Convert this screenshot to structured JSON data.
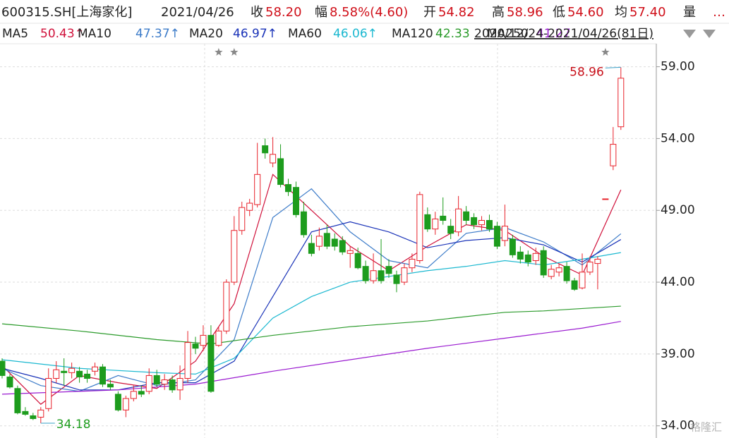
{
  "header": {
    "code": "600315.SH[上海家化]",
    "date": "2021/04/26",
    "fields": [
      {
        "label": "收",
        "value": "58.20"
      },
      {
        "label": "幅",
        "value": "8.58%(4.60)"
      },
      {
        "label": "开",
        "value": "54.82"
      },
      {
        "label": "高",
        "value": "58.96"
      },
      {
        "label": "低",
        "value": "54.60"
      },
      {
        "label": "均",
        "value": "57.40"
      }
    ],
    "volume_label": "量",
    "more": "…",
    "range": "2020/12/24-2021/04/26(81日)"
  },
  "watermark": "格隆汇",
  "chart_data": {
    "type": "candlestick",
    "up_color": "#e8222b",
    "down_color": "#1d9c1d",
    "open": [
      38.5,
      37.4,
      36.6,
      35.0,
      34.7,
      34.6,
      35.2,
      37.3,
      37.8,
      37.7,
      37.8,
      37.6,
      37.8,
      38.1,
      36.9,
      36.2,
      35.1,
      35.9,
      36.4,
      36.4,
      37.5,
      36.9,
      37.2,
      36.5,
      37.3,
      39.7,
      39.6,
      40.3,
      39.6,
      40.6,
      44.0,
      47.6,
      49.0,
      49.4,
      53.5,
      52.3,
      52.6,
      50.8,
      50.6,
      48.9,
      46.7,
      46.5,
      47.4,
      47.0,
      46.9,
      46.0,
      46.0,
      45.1,
      44.1,
      44.8,
      45.1,
      44.5,
      44.0,
      45.0,
      45.5,
      48.7,
      47.7,
      48.6,
      47.9,
      47.5,
      48.9,
      48.5,
      48.0,
      48.3,
      47.9,
      46.9,
      47.0,
      46.1,
      45.9,
      45.5,
      46.2,
      44.4,
      44.7,
      45.1,
      44.1,
      43.6,
      44.7,
      45.3,
      49.8,
      52.1,
      54.82
    ],
    "high": [
      38.7,
      37.6,
      36.8,
      35.3,
      34.9,
      35.3,
      38.0,
      38.5,
      38.7,
      38.4,
      38.1,
      37.9,
      38.4,
      38.3,
      37.2,
      36.4,
      36.1,
      36.8,
      36.8,
      38.0,
      37.9,
      37.6,
      37.5,
      38.2,
      40.6,
      40.2,
      41.0,
      41.0,
      40.9,
      44.2,
      48.6,
      49.6,
      49.8,
      53.7,
      54.0,
      54.1,
      53.6,
      51.2,
      51.0,
      49.6,
      47.3,
      47.8,
      48.0,
      47.4,
      47.2,
      46.5,
      46.4,
      45.5,
      46.0,
      47.0,
      45.6,
      44.8,
      45.3,
      46.0,
      50.3,
      49.2,
      48.9,
      49.9,
      48.4,
      50.0,
      49.3,
      48.8,
      48.6,
      48.7,
      48.2,
      49.4,
      47.3,
      46.5,
      46.2,
      46.4,
      46.5,
      45.2,
      45.3,
      45.4,
      44.3,
      46.0,
      45.8,
      45.8,
      49.8,
      54.8,
      58.96
    ],
    "low": [
      37.3,
      36.6,
      34.8,
      34.7,
      34.4,
      34.18,
      35.0,
      37.0,
      36.8,
      37.3,
      37.0,
      37.0,
      37.5,
      36.7,
      36.5,
      35.0,
      34.6,
      35.7,
      36.0,
      36.2,
      36.7,
      36.5,
      36.3,
      35.8,
      37.0,
      39.0,
      39.2,
      36.3,
      39.5,
      40.4,
      43.8,
      47.3,
      48.6,
      49.2,
      52.6,
      52.0,
      50.6,
      50.0,
      48.5,
      47.1,
      45.8,
      46.2,
      46.3,
      46.2,
      45.9,
      45.0,
      44.9,
      43.9,
      43.9,
      43.9,
      44.3,
      43.3,
      43.8,
      44.7,
      45.3,
      47.5,
      47.3,
      48.0,
      47.0,
      47.2,
      48.0,
      47.7,
      47.6,
      47.5,
      46.3,
      46.5,
      45.7,
      45.3,
      45.1,
      45.2,
      44.3,
      44.2,
      44.4,
      43.9,
      43.4,
      43.5,
      44.5,
      43.5,
      49.8,
      51.8,
      54.6
    ],
    "close": [
      37.5,
      36.7,
      34.9,
      34.8,
      34.5,
      35.1,
      37.3,
      37.9,
      37.7,
      38.0,
      37.4,
      37.3,
      38.1,
      36.9,
      36.7,
      35.1,
      35.9,
      36.4,
      36.2,
      37.5,
      36.9,
      37.2,
      36.5,
      37.3,
      39.8,
      39.4,
      40.3,
      36.4,
      40.6,
      44.0,
      47.6,
      49.2,
      49.5,
      51.5,
      53.0,
      52.9,
      50.8,
      50.3,
      48.7,
      47.3,
      46.0,
      47.2,
      46.5,
      46.5,
      46.1,
      46.2,
      45.0,
      44.1,
      44.8,
      44.1,
      44.6,
      43.9,
      45.0,
      45.6,
      50.1,
      47.7,
      48.4,
      48.3,
      47.4,
      49.1,
      48.3,
      48.0,
      48.3,
      47.7,
      46.5,
      47.9,
      45.9,
      45.6,
      45.4,
      46.0,
      44.5,
      44.9,
      45.0,
      44.1,
      43.5,
      44.7,
      45.4,
      45.6,
      49.8,
      53.6,
      58.2
    ],
    "series": [
      {
        "name": "MA5",
        "legend_value": "50.43↑",
        "color": "#d0103a",
        "x": [
          0,
          5,
          10,
          15,
          20,
          25,
          30,
          35,
          40,
          45,
          50,
          55,
          60,
          65,
          70,
          75,
          80
        ],
        "values": [
          38.2,
          35.5,
          37.5,
          37.0,
          36.6,
          38.5,
          42.5,
          51.5,
          49.0,
          46.5,
          44.8,
          46.5,
          48.0,
          47.6,
          45.8,
          44.5,
          50.43
        ]
      },
      {
        "name": "MA10",
        "legend_value": "47.37↑",
        "color": "#3d7cc9",
        "x": [
          0,
          5,
          10,
          15,
          20,
          25,
          30,
          35,
          40,
          45,
          50,
          55,
          60,
          65,
          70,
          75,
          80
        ],
        "values": [
          38.0,
          36.8,
          36.4,
          37.5,
          36.8,
          37.2,
          40.0,
          48.5,
          50.5,
          47.5,
          45.5,
          45.0,
          47.4,
          47.8,
          46.8,
          45.2,
          47.37
        ]
      },
      {
        "name": "MA20",
        "legend_value": "46.97↑",
        "color": "#1a33b8",
        "x": [
          0,
          5,
          10,
          15,
          20,
          25,
          30,
          35,
          40,
          45,
          50,
          55,
          60,
          65,
          70,
          75,
          80
        ],
        "values": [
          38.0,
          37.3,
          36.5,
          36.5,
          37.0,
          37.0,
          38.5,
          43.0,
          47.5,
          48.2,
          47.5,
          46.4,
          46.9,
          47.1,
          46.6,
          45.4,
          46.97
        ]
      },
      {
        "name": "MA60",
        "legend_value": "46.06↑",
        "color": "#1bb8d0",
        "x": [
          0,
          10,
          20,
          25,
          30,
          35,
          40,
          45,
          50,
          55,
          60,
          65,
          70,
          75,
          80
        ],
        "values": [
          38.6,
          38.0,
          37.7,
          37.6,
          38.7,
          41.5,
          43.0,
          44.0,
          44.4,
          44.8,
          45.1,
          45.5,
          45.2,
          45.6,
          46.06
        ]
      },
      {
        "name": "MA120",
        "legend_value": "42.33",
        "color": "#2a9a2a",
        "x": [
          0,
          10,
          20,
          27,
          35,
          45,
          55,
          65,
          70,
          80
        ],
        "values": [
          41.1,
          40.6,
          40.0,
          39.7,
          40.3,
          40.9,
          41.3,
          41.9,
          42.0,
          42.33
        ]
      },
      {
        "name": "MA250",
        "legend_value": "41.27",
        "color": "#9a1ad0",
        "x": [
          0,
          15,
          25,
          35,
          45,
          55,
          65,
          75,
          80
        ],
        "values": [
          36.2,
          36.5,
          36.9,
          37.8,
          38.6,
          39.4,
          40.1,
          40.8,
          41.27
        ]
      }
    ],
    "ylim": [
      33.2,
      60.6
    ],
    "yticks": [
      {
        "value": 34,
        "label": "34.00"
      },
      {
        "value": 39,
        "label": "39.00"
      },
      {
        "value": 44,
        "label": "44.00"
      },
      {
        "value": 49,
        "label": "49.00"
      },
      {
        "value": 54,
        "label": "54.00"
      },
      {
        "value": 59,
        "label": "59.00"
      }
    ],
    "grid": true,
    "annotations": [
      {
        "label": "58.96",
        "x": 80,
        "value": 58.96,
        "color": "#c8101a"
      },
      {
        "label": "34.18",
        "x": 5,
        "value": 34.18,
        "color": "#1d9c1d"
      }
    ],
    "star_markers": [
      28,
      30,
      78
    ]
  }
}
